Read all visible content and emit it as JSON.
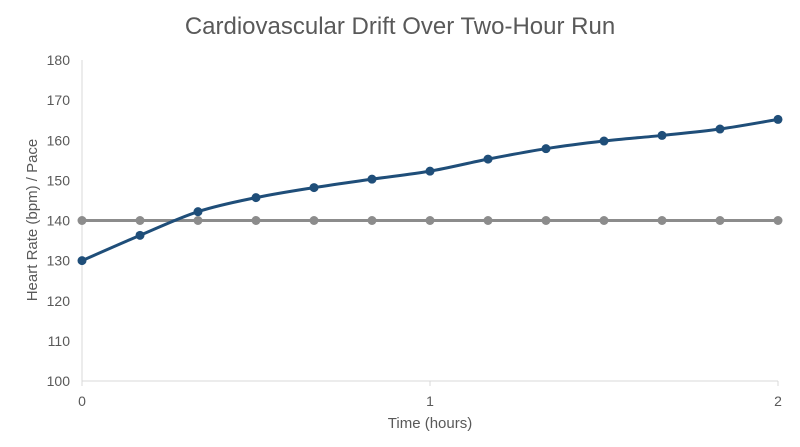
{
  "chart_data": {
    "type": "line",
    "title": "Cardiovascular Drift Over Two-Hour Run",
    "xlabel": "Time (hours)",
    "ylabel": "Heart Rate (bpm) / Pace",
    "xlim": [
      0,
      2
    ],
    "ylim": [
      100,
      180
    ],
    "xticks": [
      0,
      1,
      2
    ],
    "yticks": [
      100,
      110,
      120,
      130,
      140,
      150,
      160,
      170,
      180
    ],
    "grid": false,
    "legend": "none",
    "x": [
      0,
      0.1667,
      0.3333,
      0.5,
      0.6667,
      0.8333,
      1.0,
      1.1667,
      1.3333,
      1.5,
      1.6667,
      1.8333,
      2.0
    ],
    "series": [
      {
        "color": "#1F4E79",
        "values": [
          130,
          136.3,
          142.2,
          145.7,
          148.2,
          150.3,
          152.3,
          155.3,
          157.9,
          159.8,
          161.2,
          162.8,
          165.2
        ]
      },
      {
        "color": "#8C8C8C",
        "values": [
          140,
          140,
          140,
          140,
          140,
          140,
          140,
          140,
          140,
          140,
          140,
          140,
          140
        ]
      }
    ]
  }
}
